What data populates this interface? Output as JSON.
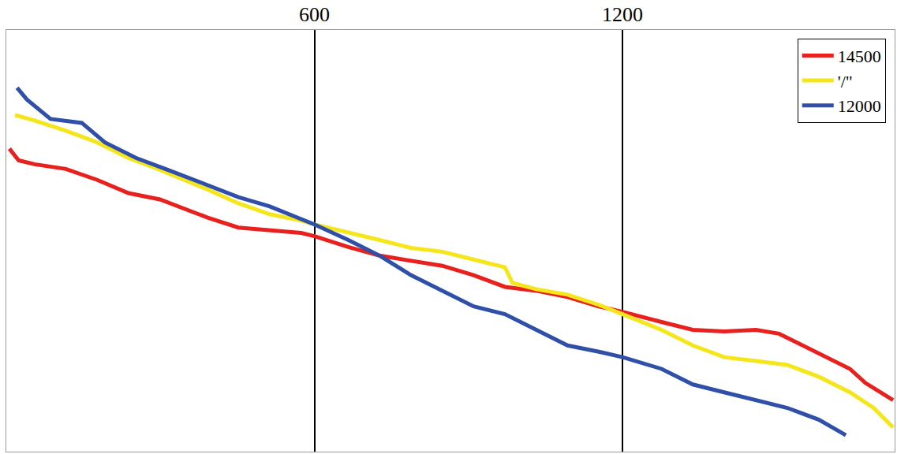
{
  "chart_data": {
    "type": "line",
    "xlim": [
      0,
      1730
    ],
    "xticks": [
      600,
      1200
    ],
    "ylim": [
      0,
      540
    ],
    "yticks": [],
    "grid": true,
    "legend": "top-right",
    "tick_labels": "x",
    "series": [
      {
        "name": "14500",
        "color": "#e8201e",
        "x": [
          6,
          24,
          55,
          116,
          177,
          238,
          299,
          391,
          452,
          513,
          574,
          600,
          666,
          727,
          788,
          849,
          910,
          971,
          1032,
          1093,
          1154,
          1200,
          1276,
          1337,
          1398,
          1460,
          1505,
          1551,
          1597,
          1643,
          1673,
          1727
        ],
        "values": [
          152,
          167,
          172,
          178,
          192,
          209,
          217,
          240,
          253,
          256,
          260,
          264,
          278,
          289,
          296,
          302,
          314,
          329,
          334,
          342,
          354,
          361,
          374,
          384,
          386,
          384,
          389,
          404,
          419,
          434,
          452,
          474
        ]
      },
      {
        "name": "'/\"",
        "color": "#f5e61c",
        "x": [
          17,
          55,
          116,
          177,
          238,
          299,
          391,
          452,
          513,
          574,
          600,
          666,
          727,
          788,
          849,
          910,
          971,
          986,
          1032,
          1093,
          1154,
          1200,
          1276,
          1337,
          1398,
          1460,
          1521,
          1582,
          1643,
          1689,
          1727
        ],
        "values": [
          109,
          116,
          129,
          144,
          164,
          179,
          204,
          222,
          236,
          244,
          249,
          259,
          269,
          279,
          284,
          294,
          304,
          324,
          332,
          339,
          352,
          364,
          384,
          404,
          419,
          424,
          429,
          444,
          464,
          484,
          509
        ]
      },
      {
        "name": "12000",
        "color": "#2f4fa8",
        "x": [
          21,
          40,
          86,
          147,
          192,
          253,
          314,
          391,
          452,
          513,
          574,
          600,
          666,
          727,
          788,
          849,
          910,
          971,
          1032,
          1093,
          1154,
          1200,
          1276,
          1337,
          1398,
          1460,
          1521,
          1582,
          1635
        ],
        "values": [
          74,
          89,
          114,
          119,
          144,
          164,
          179,
          199,
          214,
          226,
          242,
          249,
          269,
          289,
          314,
          334,
          354,
          364,
          384,
          404,
          412,
          419,
          434,
          454,
          464,
          474,
          484,
          499,
          519
        ]
      }
    ]
  }
}
